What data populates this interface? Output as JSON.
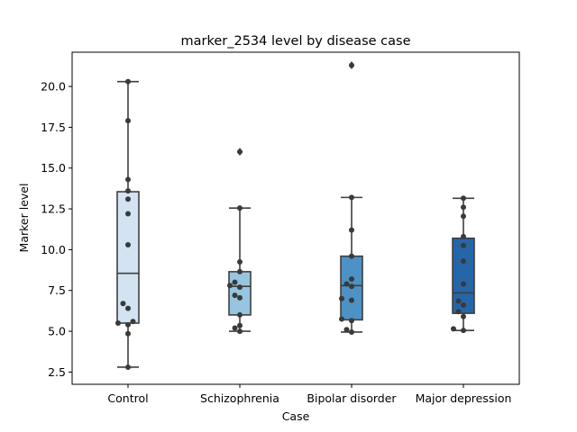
{
  "chart_data": {
    "type": "box",
    "title": "marker_2534 level by disease case",
    "xlabel": "Case",
    "ylabel": "Marker level",
    "ylim": [
      1.75,
      22.1
    ],
    "yticks": [
      2.5,
      5.0,
      7.5,
      10.0,
      12.5,
      15.0,
      17.5,
      20.0
    ],
    "ytick_labels": [
      "2.5",
      "5.0",
      "7.5",
      "10.0",
      "12.5",
      "15.0",
      "17.5",
      "20.0"
    ],
    "grid": false,
    "categories": [
      "Control",
      "Schizophrenia",
      "Bipolar disorder",
      "Major depression"
    ],
    "colors": [
      "#d3e3f2",
      "#97c5e0",
      "#4d92c5",
      "#2566a8"
    ],
    "boxes": [
      {
        "q1": 5.5,
        "median": 8.55,
        "q3": 13.55,
        "whislo": 2.8,
        "whishi": 20.3,
        "outliers": []
      },
      {
        "q1": 6.0,
        "median": 7.75,
        "q3": 8.65,
        "whislo": 5.0,
        "whishi": 12.55,
        "outliers": [
          16.0
        ]
      },
      {
        "q1": 5.7,
        "median": 7.8,
        "q3": 9.6,
        "whislo": 4.95,
        "whishi": 13.2,
        "outliers": [
          21.3
        ]
      },
      {
        "q1": 6.1,
        "median": 7.35,
        "q3": 10.7,
        "whislo": 5.05,
        "whishi": 13.15,
        "outliers": []
      }
    ],
    "points": [
      [
        20.3,
        17.9,
        14.3,
        13.6,
        13.1,
        12.2,
        10.3,
        6.7,
        6.4,
        5.6,
        5.5,
        5.4,
        4.85,
        2.8
      ],
      [
        16.0,
        12.55,
        9.25,
        8.65,
        8.0,
        7.8,
        7.7,
        7.2,
        7.05,
        6.0,
        5.35,
        5.2,
        5.0
      ],
      [
        21.3,
        13.2,
        11.2,
        9.6,
        8.2,
        7.9,
        7.75,
        7.0,
        6.9,
        5.75,
        5.65,
        5.1,
        4.95
      ],
      [
        13.15,
        12.6,
        12.05,
        10.8,
        10.25,
        9.3,
        7.9,
        6.85,
        6.6,
        6.2,
        5.9,
        5.15,
        5.05
      ]
    ]
  }
}
